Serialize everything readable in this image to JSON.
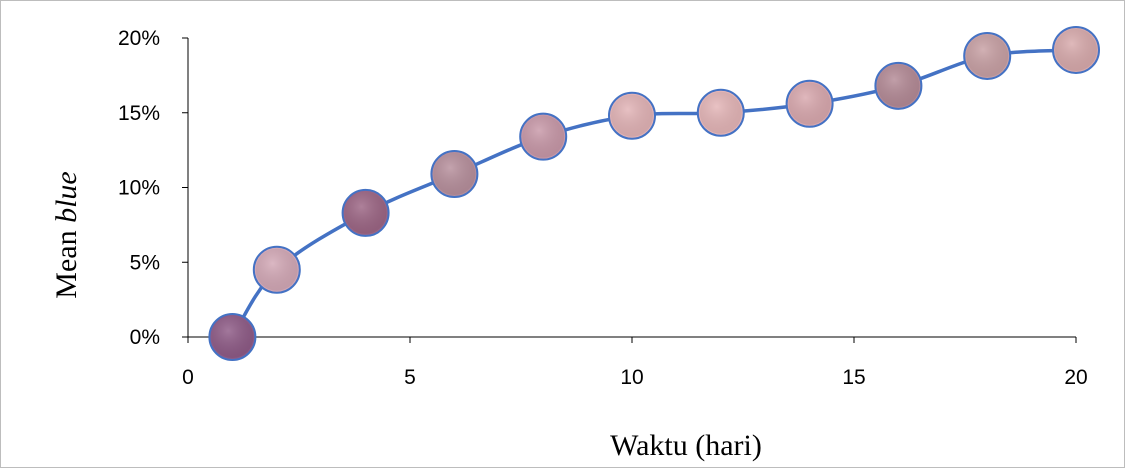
{
  "chart_data": {
    "type": "line",
    "xlabel": "Waktu (hari)",
    "ylabel_prefix": "Mean ",
    "ylabel_italic": "blue",
    "x_ticks": [
      "0",
      "5",
      "10",
      "15",
      "20"
    ],
    "y_ticks": [
      "0%",
      "5%",
      "10%",
      "15%",
      "20%"
    ],
    "xlim": [
      0,
      20
    ],
    "ylim": [
      0,
      20
    ],
    "grid": false,
    "line_color": "#4472c4",
    "marker_colors": [
      "#8e5a86",
      "#d3a8b6",
      "#9c6584",
      "#b78f9c",
      "#c898a8",
      "#e2b3b6",
      "#e4b5b7",
      "#d9a8ae",
      "#b48a96",
      "#c8a0a4",
      "#d8aaac"
    ],
    "series": [
      {
        "x": [
          1,
          2,
          4,
          6,
          8,
          10,
          12,
          14,
          16,
          18,
          20
        ],
        "y": [
          0,
          4.5,
          8.3,
          10.9,
          13.4,
          14.8,
          15.0,
          15.6,
          16.8,
          18.8,
          19.2
        ]
      }
    ]
  }
}
